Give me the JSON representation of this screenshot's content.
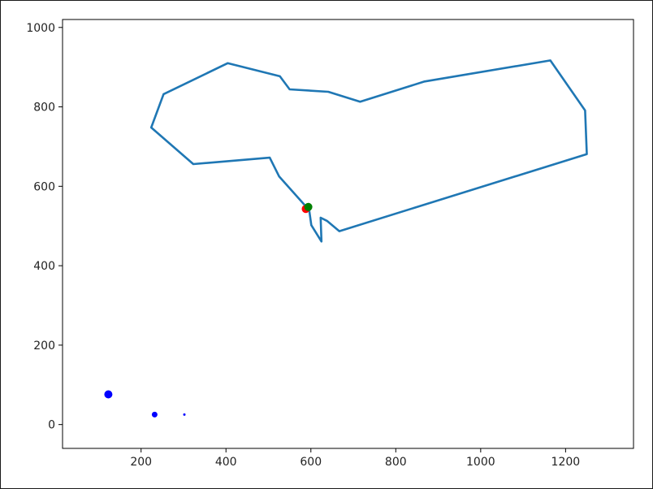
{
  "chart_data": {
    "type": "line",
    "title": "",
    "xlabel": "",
    "ylabel": "",
    "xlim": [
      15,
      1360
    ],
    "ylim": [
      -60,
      1020
    ],
    "grid": false,
    "x_ticks": [
      200,
      400,
      600,
      800,
      1000,
      1200
    ],
    "x_tick_labels": [
      "200",
      "400",
      "600",
      "800",
      "1000",
      "1200"
    ],
    "y_ticks": [
      0,
      200,
      400,
      600,
      800,
      1000
    ],
    "y_tick_labels": [
      "0",
      "200",
      "400",
      "600",
      "800",
      "1000"
    ],
    "series": [
      {
        "type": "line",
        "color": "#1f77b4",
        "x": [
          596,
          525,
          503,
          323,
          224,
          253,
          404,
          527,
          550,
          641,
          716,
          868,
          1164,
          1246,
          1250,
          667,
          638,
          623,
          625,
          601,
          596
        ],
        "y": [
          540,
          625,
          672,
          656,
          748,
          832,
          910,
          877,
          844,
          838,
          813,
          864,
          917,
          791,
          681,
          487,
          513,
          521,
          461,
          502,
          540
        ]
      },
      {
        "type": "scatter",
        "color": "#ff0000",
        "points": [
          {
            "x": 588,
            "y": 543,
            "size": 5
          }
        ]
      },
      {
        "type": "scatter",
        "color": "#008000",
        "points": [
          {
            "x": 594,
            "y": 548,
            "size": 5
          }
        ]
      },
      {
        "type": "scatter",
        "color": "#0000ff",
        "points": [
          {
            "x": 123,
            "y": 76,
            "size": 5
          },
          {
            "x": 232,
            "y": 25,
            "size": 3.5
          },
          {
            "x": 302,
            "y": 25,
            "size": 1.5
          }
        ]
      }
    ]
  }
}
